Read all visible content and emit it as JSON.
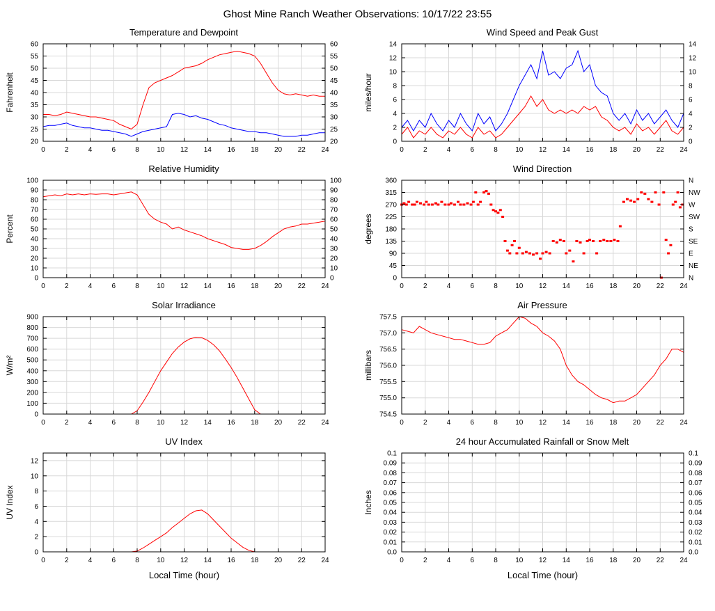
{
  "page": {
    "title": "Ghost Mine Ranch Weather Observations: 10/17/22 23:55"
  },
  "chart_data": [
    {
      "type": "line",
      "title": "Temperature and Dewpoint",
      "ylabel": "Fahrenheit",
      "xlabel": "",
      "xlim": [
        0,
        24
      ],
      "xticks": [
        0,
        2,
        4,
        6,
        8,
        10,
        12,
        14,
        16,
        18,
        20,
        22,
        24
      ],
      "ylim": [
        20,
        60
      ],
      "yticks": [
        20,
        25,
        30,
        35,
        40,
        45,
        50,
        55,
        60
      ],
      "right_ticks": true,
      "x": [
        0,
        0.5,
        1,
        1.5,
        2,
        2.5,
        3,
        3.5,
        4,
        4.5,
        5,
        5.5,
        6,
        6.5,
        7,
        7.5,
        8,
        8.5,
        9,
        9.5,
        10,
        10.5,
        11,
        11.5,
        12,
        12.5,
        13,
        13.5,
        14,
        14.5,
        15,
        15.5,
        16,
        16.5,
        17,
        17.5,
        18,
        18.5,
        19,
        19.5,
        20,
        20.5,
        21,
        21.5,
        22,
        22.5,
        23,
        23.5,
        24
      ],
      "series": [
        {
          "name": "temperature",
          "color": "#ff0000",
          "y": [
            31,
            31,
            30.5,
            31,
            32,
            31.5,
            31,
            30.5,
            30,
            30,
            29.5,
            29,
            28.5,
            27,
            26,
            25,
            27,
            35,
            42,
            44,
            45,
            46,
            47,
            48.5,
            50,
            50.5,
            51,
            52,
            53.5,
            54.5,
            55.5,
            56,
            56.5,
            57,
            56.5,
            56,
            55,
            52,
            48,
            44,
            41,
            39.5,
            39,
            39.5,
            39,
            38.5,
            39,
            38.5,
            38.5
          ]
        },
        {
          "name": "dewpoint",
          "color": "#0000ff",
          "y": [
            26,
            26.5,
            26.5,
            27,
            27.5,
            26.5,
            26,
            25.5,
            25.5,
            25,
            24.5,
            24.5,
            24,
            23.5,
            23,
            22,
            23,
            24,
            24.5,
            25,
            25.5,
            26,
            31,
            31.5,
            31,
            30,
            30.5,
            29.5,
            29,
            28,
            27,
            26.5,
            25.5,
            25,
            24.5,
            24,
            24,
            23.5,
            23.5,
            23,
            22.5,
            22,
            22,
            22,
            22.5,
            22.5,
            23,
            23.5,
            23.5
          ]
        }
      ]
    },
    {
      "type": "line",
      "title": "Wind Speed and Peak Gust",
      "ylabel": "miles/hour",
      "xlabel": "",
      "xlim": [
        0,
        24
      ],
      "xticks": [
        0,
        2,
        4,
        6,
        8,
        10,
        12,
        14,
        16,
        18,
        20,
        22,
        24
      ],
      "ylim": [
        0,
        14
      ],
      "yticks": [
        0,
        2,
        4,
        6,
        8,
        10,
        12,
        14
      ],
      "right_ticks": true,
      "x": [
        0,
        0.5,
        1,
        1.5,
        2,
        2.5,
        3,
        3.5,
        4,
        4.5,
        5,
        5.5,
        6,
        6.5,
        7,
        7.5,
        8,
        8.5,
        9,
        9.5,
        10,
        10.5,
        11,
        11.5,
        12,
        12.5,
        13,
        13.5,
        14,
        14.5,
        15,
        15.5,
        16,
        16.5,
        17,
        17.5,
        18,
        18.5,
        19,
        19.5,
        20,
        20.5,
        21,
        21.5,
        22,
        22.5,
        23,
        23.5,
        24
      ],
      "series": [
        {
          "name": "wind-speed",
          "color": "#ff0000",
          "y": [
            1,
            2,
            0.5,
            1.5,
            1,
            2,
            1,
            0.5,
            1.5,
            1,
            2,
            1,
            0.5,
            2,
            1,
            1.5,
            0.5,
            1,
            2,
            3,
            4,
            5,
            6.5,
            5,
            6,
            4.5,
            4,
            4.5,
            4,
            4.5,
            4,
            5,
            4.5,
            5,
            3.5,
            3,
            2,
            1.5,
            2,
            1,
            2.5,
            1.5,
            2,
            1,
            2,
            3,
            1.5,
            1,
            2
          ]
        },
        {
          "name": "peak-gust",
          "color": "#0000ff",
          "y": [
            2,
            3,
            1.5,
            3,
            2,
            4,
            2.5,
            1.5,
            3,
            2,
            4,
            2.5,
            1.5,
            4,
            2.5,
            3.5,
            1.5,
            2.5,
            4,
            6,
            8,
            9.5,
            11,
            9,
            13,
            9.5,
            10,
            9,
            10.5,
            11,
            13,
            10,
            11,
            8,
            7,
            6.5,
            4,
            3,
            4,
            2.5,
            4.5,
            3,
            4,
            2.5,
            3.5,
            4.5,
            3,
            2,
            4
          ]
        }
      ]
    },
    {
      "type": "line",
      "title": "Relative Humidity",
      "ylabel": "Percent",
      "xlabel": "",
      "xlim": [
        0,
        24
      ],
      "xticks": [
        0,
        2,
        4,
        6,
        8,
        10,
        12,
        14,
        16,
        18,
        20,
        22,
        24
      ],
      "ylim": [
        0,
        100
      ],
      "yticks": [
        0,
        10,
        20,
        30,
        40,
        50,
        60,
        70,
        80,
        90,
        100
      ],
      "right_ticks": true,
      "x": [
        0,
        0.5,
        1,
        1.5,
        2,
        2.5,
        3,
        3.5,
        4,
        4.5,
        5,
        5.5,
        6,
        6.5,
        7,
        7.5,
        8,
        8.5,
        9,
        9.5,
        10,
        10.5,
        11,
        11.5,
        12,
        12.5,
        13,
        13.5,
        14,
        14.5,
        15,
        15.5,
        16,
        16.5,
        17,
        17.5,
        18,
        18.5,
        19,
        19.5,
        20,
        20.5,
        21,
        21.5,
        22,
        22.5,
        23,
        23.5,
        24
      ],
      "series": [
        {
          "name": "relative-humidity",
          "color": "#ff0000",
          "y": [
            83,
            84,
            85,
            84,
            86,
            85,
            86,
            85,
            86,
            85.5,
            86,
            86,
            85,
            86,
            87,
            88,
            85,
            75,
            65,
            60,
            57,
            55,
            50,
            52,
            49,
            47,
            45,
            43,
            40,
            38,
            36,
            34,
            31,
            30,
            29,
            29,
            30,
            33,
            37,
            42,
            46,
            50,
            52,
            53,
            55,
            55,
            56,
            57,
            58
          ]
        }
      ]
    },
    {
      "type": "scatter",
      "title": "Wind Direction",
      "ylabel": "degrees",
      "xlabel": "",
      "xlim": [
        0,
        24
      ],
      "xticks": [
        0,
        2,
        4,
        6,
        8,
        10,
        12,
        14,
        16,
        18,
        20,
        22,
        24
      ],
      "ylim": [
        0,
        360
      ],
      "yticks": [
        0,
        45,
        90,
        135,
        180,
        225,
        270,
        315,
        360
      ],
      "right_labels": [
        "N",
        "NE",
        "E",
        "SE",
        "S",
        "SW",
        "W",
        "NW",
        "N"
      ],
      "x": [
        0,
        0.2,
        0.4,
        0.6,
        0.9,
        1.1,
        1.3,
        1.6,
        1.9,
        2.1,
        2.3,
        2.6,
        2.9,
        3.1,
        3.4,
        3.7,
        4.0,
        4.2,
        4.5,
        4.8,
        5.0,
        5.3,
        5.6,
        5.9,
        6.1,
        6.3,
        6.5,
        6.7,
        7.0,
        7.2,
        7.4,
        7.6,
        7.8,
        8.0,
        8.2,
        8.4,
        8.6,
        8.8,
        9.0,
        9.2,
        9.4,
        9.6,
        9.8,
        10.0,
        10.3,
        10.6,
        10.9,
        11.2,
        11.5,
        11.8,
        12.0,
        12.3,
        12.6,
        12.9,
        13.2,
        13.5,
        13.8,
        14.0,
        14.3,
        14.6,
        14.9,
        15.2,
        15.5,
        15.8,
        16.0,
        16.3,
        16.6,
        16.9,
        17.2,
        17.5,
        17.8,
        18.1,
        18.4,
        18.6,
        18.9,
        19.2,
        19.5,
        19.8,
        20.1,
        20.4,
        20.7,
        21.0,
        21.3,
        21.6,
        21.9,
        22.1,
        22.3,
        22.5,
        22.7,
        22.9,
        23.1,
        23.3,
        23.5,
        23.7,
        23.9
      ],
      "series": [
        {
          "name": "wind-direction",
          "color": "#ff0000",
          "type": "scatter",
          "y": [
            270,
            275,
            270,
            280,
            270,
            270,
            280,
            275,
            270,
            280,
            270,
            270,
            275,
            270,
            280,
            270,
            270,
            275,
            270,
            280,
            270,
            270,
            275,
            270,
            280,
            315,
            270,
            280,
            315,
            320,
            310,
            270,
            250,
            245,
            240,
            250,
            225,
            135,
            100,
            90,
            120,
            135,
            90,
            110,
            90,
            95,
            90,
            85,
            90,
            70,
            90,
            95,
            90,
            135,
            130,
            140,
            135,
            90,
            100,
            60,
            135,
            130,
            90,
            135,
            140,
            135,
            90,
            135,
            140,
            135,
            135,
            140,
            135,
            190,
            280,
            290,
            285,
            280,
            290,
            315,
            310,
            290,
            280,
            315,
            270,
            0,
            315,
            140,
            90,
            120,
            270,
            280,
            315,
            260,
            270
          ]
        }
      ]
    },
    {
      "type": "line",
      "title": "Solar Irradiance",
      "ylabel": "W/m²",
      "xlabel": "",
      "xlim": [
        0,
        24
      ],
      "xticks": [
        0,
        2,
        4,
        6,
        8,
        10,
        12,
        14,
        16,
        18,
        20,
        22,
        24
      ],
      "ylim": [
        0,
        900
      ],
      "yticks": [
        0,
        100,
        200,
        300,
        400,
        500,
        600,
        700,
        800,
        900
      ],
      "x": [
        0,
        0.5,
        1,
        1.5,
        2,
        2.5,
        3,
        3.5,
        4,
        4.5,
        5,
        5.5,
        6,
        6.5,
        7,
        7.5,
        8,
        8.5,
        9,
        9.5,
        10,
        10.5,
        11,
        11.5,
        12,
        12.5,
        13,
        13.5,
        14,
        14.5,
        15,
        15.5,
        16,
        16.5,
        17,
        17.5,
        18,
        18.5,
        19,
        19.5,
        20,
        20.5,
        21,
        21.5,
        22,
        22.5,
        23,
        23.5,
        24
      ],
      "series": [
        {
          "name": "solar-irradiance",
          "color": "#ff0000",
          "y": [
            0,
            0,
            0,
            0,
            0,
            0,
            0,
            0,
            0,
            0,
            0,
            0,
            0,
            0,
            0,
            0,
            30,
            110,
            200,
            300,
            400,
            480,
            560,
            620,
            665,
            695,
            710,
            705,
            680,
            640,
            585,
            510,
            430,
            340,
            240,
            140,
            40,
            0,
            0,
            0,
            0,
            0,
            0,
            0,
            0,
            0,
            0,
            0,
            0
          ]
        }
      ]
    },
    {
      "type": "line",
      "title": "Air Pressure",
      "ylabel": "millibars",
      "xlabel": "",
      "xlim": [
        0,
        24
      ],
      "xticks": [
        0,
        2,
        4,
        6,
        8,
        10,
        12,
        14,
        16,
        18,
        20,
        22,
        24
      ],
      "ylim": [
        754.5,
        757.5
      ],
      "yticks": [
        754.5,
        755,
        755.5,
        756,
        756.5,
        757,
        757.5
      ],
      "ytick_labels": [
        "754.5",
        "755.0",
        "755.5",
        "756.0",
        "756.5",
        "757.0",
        "757.5"
      ],
      "x": [
        0,
        0.5,
        1,
        1.5,
        2,
        2.5,
        3,
        3.5,
        4,
        4.5,
        5,
        5.5,
        6,
        6.5,
        7,
        7.5,
        8,
        8.5,
        9,
        9.5,
        10,
        10.5,
        11,
        11.5,
        12,
        12.5,
        13,
        13.5,
        14,
        14.5,
        15,
        15.5,
        16,
        16.5,
        17,
        17.5,
        18,
        18.5,
        19,
        19.5,
        20,
        20.5,
        21,
        21.5,
        22,
        22.5,
        23,
        23.5,
        24
      ],
      "series": [
        {
          "name": "air-pressure",
          "color": "#ff0000",
          "y": [
            757.1,
            757.05,
            757.0,
            757.2,
            757.1,
            757.0,
            756.95,
            756.9,
            756.85,
            756.8,
            756.8,
            756.75,
            756.7,
            756.65,
            756.65,
            756.7,
            756.9,
            757.0,
            757.1,
            757.3,
            757.5,
            757.45,
            757.3,
            757.2,
            757.0,
            756.9,
            756.75,
            756.5,
            756.0,
            755.7,
            755.5,
            755.4,
            755.25,
            755.1,
            755.0,
            754.95,
            754.85,
            754.9,
            754.9,
            755.0,
            755.1,
            755.3,
            755.5,
            755.7,
            756.0,
            756.2,
            756.5,
            756.5,
            756.4
          ]
        }
      ]
    },
    {
      "type": "line",
      "title": "UV Index",
      "ylabel": "UV Index",
      "xlabel": "Local Time (hour)",
      "xlim": [
        0,
        24
      ],
      "xticks": [
        0,
        2,
        4,
        6,
        8,
        10,
        12,
        14,
        16,
        18,
        20,
        22,
        24
      ],
      "ylim": [
        0,
        13
      ],
      "yticks": [
        0,
        2,
        4,
        6,
        8,
        10,
        12
      ],
      "x": [
        0,
        0.5,
        1,
        1.5,
        2,
        2.5,
        3,
        3.5,
        4,
        4.5,
        5,
        5.5,
        6,
        6.5,
        7,
        7.5,
        8,
        8.5,
        9,
        9.5,
        10,
        10.5,
        11,
        11.5,
        12,
        12.5,
        13,
        13.5,
        14,
        14.5,
        15,
        15.5,
        16,
        16.5,
        17,
        17.5,
        18,
        18.5,
        19,
        19.5,
        20,
        20.5,
        21,
        21.5,
        22,
        22.5,
        23,
        23.5,
        24
      ],
      "series": [
        {
          "name": "uv-index",
          "color": "#ff0000",
          "y": [
            0,
            0,
            0,
            0,
            0,
            0,
            0,
            0,
            0,
            0,
            0,
            0,
            0,
            0,
            0,
            0,
            0.1,
            0.5,
            1,
            1.5,
            2,
            2.5,
            3.2,
            3.8,
            4.4,
            5,
            5.4,
            5.5,
            5,
            4.2,
            3.4,
            2.6,
            1.8,
            1.2,
            0.6,
            0.2,
            0,
            0,
            0,
            0,
            0,
            0,
            0,
            0,
            0,
            0,
            0,
            0,
            0
          ]
        }
      ]
    },
    {
      "type": "line",
      "title": "24 hour Accumulated Rainfall or Snow Melt",
      "ylabel": "Inches",
      "xlabel": "Local Time (hour)",
      "xlim": [
        0,
        24
      ],
      "xticks": [
        0,
        2,
        4,
        6,
        8,
        10,
        12,
        14,
        16,
        18,
        20,
        22,
        24
      ],
      "ylim": [
        0,
        0.1
      ],
      "yticks": [
        0,
        0.01,
        0.02,
        0.03,
        0.04,
        0.05,
        0.06,
        0.07,
        0.08,
        0.09,
        0.1
      ],
      "ytick_labels": [
        "0.0",
        "0.01",
        "0.02",
        "0.03",
        "0.04",
        "0.05",
        "0.06",
        "0.07",
        "0.08",
        "0.09",
        "0.1"
      ],
      "right_ticks": true,
      "x": [
        0,
        24
      ],
      "series": [
        {
          "name": "rainfall",
          "color": "#ff0000",
          "y": [
            0,
            0
          ]
        }
      ]
    }
  ]
}
